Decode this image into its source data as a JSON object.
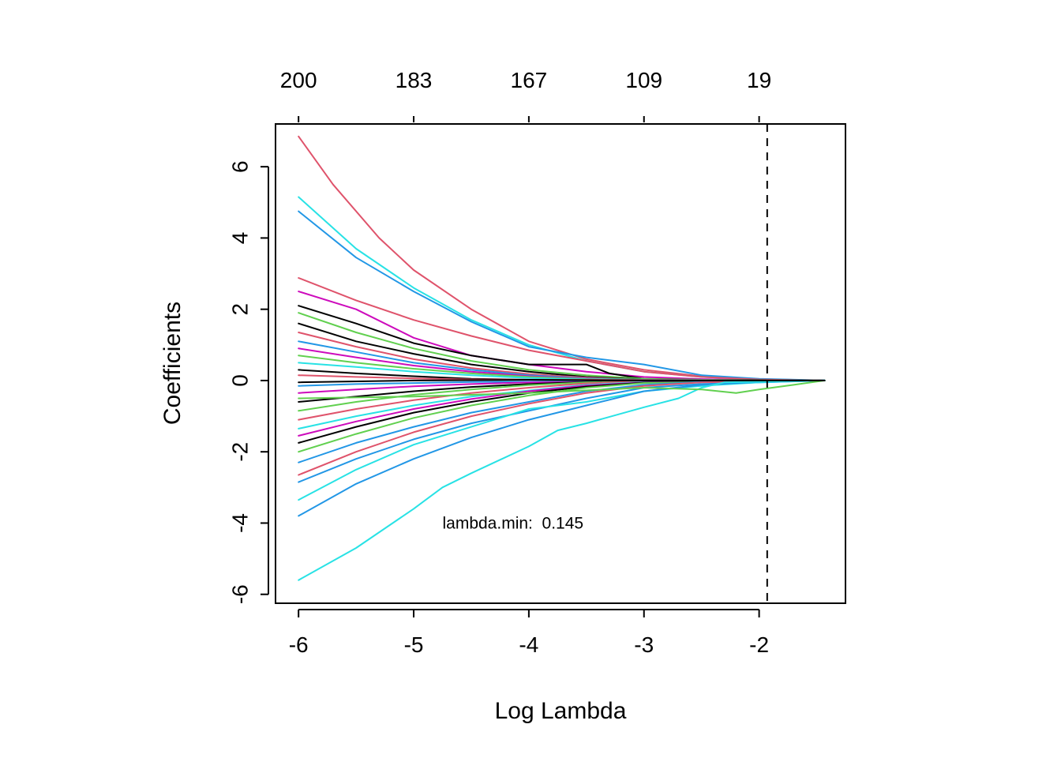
{
  "chart_data": {
    "type": "line",
    "title": "",
    "xlabel": "Log Lambda",
    "ylabel": "Coefficients",
    "xlim": [
      -6.2,
      -1.25
    ],
    "ylim": [
      -6.25,
      7.2
    ],
    "x_ticks": [
      "-6",
      "-5",
      "-4",
      "-3",
      "-2"
    ],
    "x_tick_values": [
      -6,
      -5,
      -4,
      -3,
      -2
    ],
    "y_ticks": [
      "-6",
      "-4",
      "-2",
      "0",
      "2",
      "4",
      "6"
    ],
    "y_tick_values": [
      -6,
      -4,
      -2,
      0,
      2,
      4,
      6
    ],
    "top_ticks": [
      "200",
      "183",
      "167",
      "109",
      "19"
    ],
    "top_tick_values": [
      -6,
      -5,
      -4,
      -3,
      -2
    ],
    "vline": {
      "x": -1.93,
      "style": "dashed"
    },
    "annotation": {
      "text": "lambda.min:  0.145",
      "x": -4.75,
      "y": -4.0
    },
    "grid": false,
    "legend": "none",
    "palette": [
      "#000000",
      "#df536b",
      "#61d04f",
      "#2297e6",
      "#28e2e5",
      "#cd0bbc",
      "#f5c710",
      "#9e9e9e"
    ],
    "series": [
      {
        "color": "#df536b",
        "points": [
          [
            -6.0,
            6.85
          ],
          [
            -5.7,
            5.5
          ],
          [
            -5.3,
            4.0
          ],
          [
            -5.0,
            3.1
          ],
          [
            -4.5,
            2.0
          ],
          [
            -4.0,
            1.1
          ],
          [
            -3.5,
            0.6
          ],
          [
            -3.0,
            0.3
          ],
          [
            -2.5,
            0.12
          ],
          [
            -2.0,
            0.04
          ],
          [
            -1.43,
            0.0
          ]
        ]
      },
      {
        "color": "#28e2e5",
        "points": [
          [
            -6.0,
            5.15
          ],
          [
            -5.5,
            3.7
          ],
          [
            -5.0,
            2.6
          ],
          [
            -4.5,
            1.7
          ],
          [
            -4.0,
            1.0
          ],
          [
            -3.5,
            0.55
          ],
          [
            -3.0,
            0.25
          ],
          [
            -2.5,
            0.1
          ],
          [
            -2.0,
            0.03
          ],
          [
            -1.43,
            0.0
          ]
        ]
      },
      {
        "color": "#2297e6",
        "points": [
          [
            -6.0,
            4.75
          ],
          [
            -5.5,
            3.45
          ],
          [
            -5.0,
            2.5
          ],
          [
            -4.5,
            1.65
          ],
          [
            -4.0,
            0.95
          ],
          [
            -3.5,
            0.65
          ],
          [
            -3.0,
            0.45
          ],
          [
            -2.5,
            0.15
          ],
          [
            -2.0,
            0.05
          ],
          [
            -1.43,
            0.0
          ]
        ]
      },
      {
        "color": "#df536b",
        "points": [
          [
            -6.0,
            2.88
          ],
          [
            -5.5,
            2.25
          ],
          [
            -5.0,
            1.7
          ],
          [
            -4.5,
            1.25
          ],
          [
            -4.0,
            0.85
          ],
          [
            -3.5,
            0.55
          ],
          [
            -3.0,
            0.25
          ],
          [
            -2.5,
            0.1
          ],
          [
            -2.0,
            0.03
          ],
          [
            -1.43,
            0.0
          ]
        ]
      },
      {
        "color": "#cd0bbc",
        "points": [
          [
            -6.0,
            2.5
          ],
          [
            -5.5,
            2.0
          ],
          [
            -5.0,
            1.2
          ],
          [
            -4.5,
            0.7
          ],
          [
            -4.0,
            0.45
          ],
          [
            -3.5,
            0.25
          ],
          [
            -3.0,
            0.1
          ],
          [
            -2.5,
            0.04
          ],
          [
            -2.0,
            0.01
          ],
          [
            -1.43,
            0.0
          ]
        ]
      },
      {
        "color": "#000000",
        "points": [
          [
            -6.0,
            2.1
          ],
          [
            -5.5,
            1.6
          ],
          [
            -5.0,
            1.05
          ],
          [
            -4.5,
            0.7
          ],
          [
            -4.0,
            0.45
          ],
          [
            -3.5,
            0.45
          ],
          [
            -3.3,
            0.2
          ],
          [
            -3.0,
            0.05
          ],
          [
            -2.5,
            0.02
          ],
          [
            -1.43,
            0.0
          ]
        ]
      },
      {
        "color": "#61d04f",
        "points": [
          [
            -6.0,
            1.9
          ],
          [
            -5.5,
            1.35
          ],
          [
            -5.0,
            0.9
          ],
          [
            -4.5,
            0.55
          ],
          [
            -4.0,
            0.3
          ],
          [
            -3.5,
            0.15
          ],
          [
            -3.0,
            0.05
          ],
          [
            -2.5,
            0.02
          ],
          [
            -1.43,
            0.0
          ]
        ]
      },
      {
        "color": "#000000",
        "points": [
          [
            -6.0,
            1.6
          ],
          [
            -5.5,
            1.1
          ],
          [
            -5.0,
            0.75
          ],
          [
            -4.5,
            0.45
          ],
          [
            -4.0,
            0.25
          ],
          [
            -3.5,
            0.1
          ],
          [
            -3.0,
            0.03
          ],
          [
            -1.43,
            0.0
          ]
        ]
      },
      {
        "color": "#df536b",
        "points": [
          [
            -6.0,
            1.35
          ],
          [
            -5.5,
            0.95
          ],
          [
            -5.0,
            0.6
          ],
          [
            -4.5,
            0.35
          ],
          [
            -4.0,
            0.18
          ],
          [
            -3.5,
            0.08
          ],
          [
            -3.0,
            0.02
          ],
          [
            -1.43,
            0.0
          ]
        ]
      },
      {
        "color": "#2297e6",
        "points": [
          [
            -6.0,
            1.1
          ],
          [
            -5.5,
            0.8
          ],
          [
            -5.0,
            0.5
          ],
          [
            -4.5,
            0.3
          ],
          [
            -4.0,
            0.15
          ],
          [
            -3.5,
            0.06
          ],
          [
            -3.0,
            0.02
          ],
          [
            -1.43,
            0.0
          ]
        ]
      },
      {
        "color": "#cd0bbc",
        "points": [
          [
            -6.0,
            0.9
          ],
          [
            -5.5,
            0.65
          ],
          [
            -5.0,
            0.42
          ],
          [
            -4.5,
            0.25
          ],
          [
            -4.0,
            0.12
          ],
          [
            -3.5,
            0.05
          ],
          [
            -3.0,
            0.01
          ],
          [
            -1.43,
            0.0
          ]
        ]
      },
      {
        "color": "#61d04f",
        "points": [
          [
            -6.0,
            0.7
          ],
          [
            -5.5,
            0.5
          ],
          [
            -5.0,
            0.33
          ],
          [
            -4.5,
            0.2
          ],
          [
            -4.0,
            0.1
          ],
          [
            -3.5,
            0.04
          ],
          [
            -1.43,
            0.0
          ]
        ]
      },
      {
        "color": "#28e2e5",
        "points": [
          [
            -6.0,
            0.5
          ],
          [
            -5.5,
            0.38
          ],
          [
            -5.0,
            0.25
          ],
          [
            -4.5,
            0.15
          ],
          [
            -4.0,
            0.07
          ],
          [
            -3.5,
            0.03
          ],
          [
            -1.43,
            0.0
          ]
        ]
      },
      {
        "color": "#000000",
        "points": [
          [
            -6.0,
            0.3
          ],
          [
            -5.5,
            0.2
          ],
          [
            -5.0,
            0.12
          ],
          [
            -4.5,
            0.05
          ],
          [
            -4.0,
            0.02
          ],
          [
            -1.43,
            0.0
          ]
        ]
      },
      {
        "color": "#df536b",
        "points": [
          [
            -6.0,
            0.15
          ],
          [
            -5.5,
            0.1
          ],
          [
            -5.0,
            0.06
          ],
          [
            -4.5,
            0.03
          ],
          [
            -1.43,
            0.0
          ]
        ]
      },
      {
        "color": "#2297e6",
        "points": [
          [
            -6.0,
            -0.15
          ],
          [
            -5.5,
            -0.1
          ],
          [
            -5.0,
            -0.07
          ],
          [
            -4.5,
            -0.04
          ],
          [
            -1.43,
            0.0
          ]
        ]
      },
      {
        "color": "#cd0bbc",
        "points": [
          [
            -6.0,
            -0.35
          ],
          [
            -5.5,
            -0.25
          ],
          [
            -5.0,
            -0.16
          ],
          [
            -4.5,
            -0.1
          ],
          [
            -4.0,
            -0.05
          ],
          [
            -1.43,
            0.0
          ]
        ]
      },
      {
        "color": "#000000",
        "points": [
          [
            -6.0,
            -0.6
          ],
          [
            -5.5,
            -0.45
          ],
          [
            -5.0,
            -0.3
          ],
          [
            -4.5,
            -0.18
          ],
          [
            -4.0,
            -0.1
          ],
          [
            -3.5,
            -0.04
          ],
          [
            -1.43,
            0.0
          ]
        ]
      },
      {
        "color": "#61d04f",
        "points": [
          [
            -6.0,
            -0.85
          ],
          [
            -5.5,
            -0.6
          ],
          [
            -5.0,
            -0.4
          ],
          [
            -4.5,
            -0.25
          ],
          [
            -4.0,
            -0.13
          ],
          [
            -3.5,
            -0.05
          ],
          [
            -1.43,
            0.0
          ]
        ]
      },
      {
        "color": "#df536b",
        "points": [
          [
            -6.0,
            -1.1
          ],
          [
            -5.5,
            -0.8
          ],
          [
            -5.0,
            -0.55
          ],
          [
            -4.5,
            -0.35
          ],
          [
            -4.0,
            -0.2
          ],
          [
            -3.5,
            -0.08
          ],
          [
            -3.0,
            -0.02
          ],
          [
            -1.43,
            0.0
          ]
        ]
      },
      {
        "color": "#28e2e5",
        "points": [
          [
            -6.0,
            -1.35
          ],
          [
            -5.5,
            -1.0
          ],
          [
            -5.0,
            -0.7
          ],
          [
            -4.5,
            -0.45
          ],
          [
            -4.0,
            -0.28
          ],
          [
            -3.5,
            -0.12
          ],
          [
            -3.0,
            -0.04
          ],
          [
            -1.43,
            0.0
          ]
        ]
      },
      {
        "color": "#cd0bbc",
        "points": [
          [
            -6.0,
            -1.55
          ],
          [
            -5.5,
            -1.15
          ],
          [
            -5.0,
            -0.8
          ],
          [
            -4.5,
            -0.52
          ],
          [
            -4.0,
            -0.3
          ],
          [
            -3.5,
            -0.14
          ],
          [
            -3.0,
            -0.05
          ],
          [
            -1.43,
            0.0
          ]
        ]
      },
      {
        "color": "#000000",
        "points": [
          [
            -6.0,
            -1.75
          ],
          [
            -5.5,
            -1.3
          ],
          [
            -5.0,
            -0.9
          ],
          [
            -4.5,
            -0.6
          ],
          [
            -4.0,
            -0.35
          ],
          [
            -3.5,
            -0.17
          ],
          [
            -3.0,
            -0.06
          ],
          [
            -1.43,
            0.0
          ]
        ]
      },
      {
        "color": "#61d04f",
        "points": [
          [
            -6.0,
            -2.0
          ],
          [
            -5.5,
            -1.5
          ],
          [
            -5.0,
            -1.05
          ],
          [
            -4.5,
            -0.7
          ],
          [
            -4.0,
            -0.42
          ],
          [
            -3.5,
            -0.2
          ],
          [
            -3.0,
            -0.07
          ],
          [
            -1.43,
            0.0
          ]
        ]
      },
      {
        "color": "#2297e6",
        "points": [
          [
            -6.0,
            -2.3
          ],
          [
            -5.5,
            -1.75
          ],
          [
            -5.0,
            -1.3
          ],
          [
            -4.5,
            -0.9
          ],
          [
            -4.0,
            -0.6
          ],
          [
            -3.5,
            -0.3
          ],
          [
            -3.0,
            -0.12
          ],
          [
            -2.5,
            -0.04
          ],
          [
            -1.43,
            0.0
          ]
        ]
      },
      {
        "color": "#df536b",
        "points": [
          [
            -6.0,
            -2.65
          ],
          [
            -5.5,
            -2.0
          ],
          [
            -5.0,
            -1.45
          ],
          [
            -4.5,
            -1.0
          ],
          [
            -4.0,
            -0.65
          ],
          [
            -3.5,
            -0.35
          ],
          [
            -3.0,
            -0.15
          ],
          [
            -2.5,
            -0.05
          ],
          [
            -1.43,
            0.0
          ]
        ]
      },
      {
        "color": "#2297e6",
        "points": [
          [
            -6.0,
            -2.85
          ],
          [
            -5.5,
            -2.2
          ],
          [
            -5.0,
            -1.65
          ],
          [
            -4.5,
            -1.2
          ],
          [
            -4.0,
            -0.85
          ],
          [
            -3.5,
            -0.5
          ],
          [
            -3.0,
            -0.2
          ],
          [
            -2.5,
            -0.1
          ],
          [
            -1.43,
            0.0
          ]
        ]
      },
      {
        "color": "#28e2e5",
        "points": [
          [
            -6.0,
            -3.35
          ],
          [
            -5.5,
            -2.5
          ],
          [
            -5.0,
            -1.8
          ],
          [
            -4.5,
            -1.3
          ],
          [
            -4.0,
            -0.8
          ],
          [
            -3.5,
            -0.6
          ],
          [
            -3.0,
            -0.3
          ],
          [
            -2.5,
            -0.15
          ],
          [
            -2.0,
            -0.05
          ],
          [
            -1.43,
            0.0
          ]
        ]
      },
      {
        "color": "#2297e6",
        "points": [
          [
            -6.0,
            -3.8
          ],
          [
            -5.5,
            -2.9
          ],
          [
            -5.0,
            -2.2
          ],
          [
            -4.5,
            -1.6
          ],
          [
            -4.0,
            -1.1
          ],
          [
            -3.5,
            -0.7
          ],
          [
            -3.0,
            -0.3
          ],
          [
            -2.5,
            -0.12
          ],
          [
            -2.0,
            -0.04
          ],
          [
            -1.43,
            0.0
          ]
        ]
      },
      {
        "color": "#28e2e5",
        "points": [
          [
            -6.0,
            -5.6
          ],
          [
            -5.5,
            -4.7
          ],
          [
            -5.0,
            -3.6
          ],
          [
            -4.75,
            -3.0
          ],
          [
            -4.5,
            -2.6
          ],
          [
            -4.0,
            -1.85
          ],
          [
            -3.75,
            -1.4
          ],
          [
            -3.5,
            -1.2
          ],
          [
            -3.0,
            -0.75
          ],
          [
            -2.7,
            -0.5
          ],
          [
            -2.5,
            -0.2
          ],
          [
            -2.3,
            -0.05
          ],
          [
            -1.43,
            0.0
          ]
        ]
      },
      {
        "color": "#61d04f",
        "points": [
          [
            -6.0,
            -0.5
          ],
          [
            -5.0,
            -0.45
          ],
          [
            -4.0,
            -0.35
          ],
          [
            -3.0,
            -0.2
          ],
          [
            -2.5,
            -0.25
          ],
          [
            -2.2,
            -0.35
          ],
          [
            -2.0,
            -0.25
          ],
          [
            -1.7,
            -0.12
          ],
          [
            -1.43,
            0.0
          ]
        ]
      },
      {
        "color": "#000000",
        "points": [
          [
            -6.0,
            -0.05
          ],
          [
            -5.0,
            0.0
          ],
          [
            -4.0,
            0.02
          ],
          [
            -3.0,
            0.0
          ],
          [
            -1.43,
            0.0
          ]
        ]
      }
    ]
  }
}
